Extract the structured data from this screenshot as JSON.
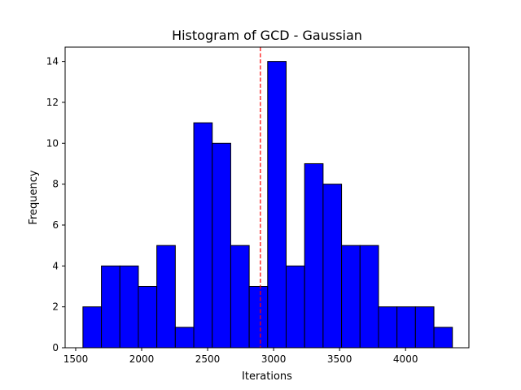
{
  "chart_data": {
    "type": "bar",
    "subtype": "histogram",
    "title": "Histogram of GCD - Gaussian",
    "xlabel": "Iterations",
    "ylabel": "Frequency",
    "xlim": [
      1420,
      4480
    ],
    "ylim": [
      0,
      14.7
    ],
    "xticks": [
      1500,
      2000,
      2500,
      3000,
      3500,
      4000
    ],
    "yticks": [
      0,
      2,
      4,
      6,
      8,
      10,
      12,
      14
    ],
    "bins": [
      {
        "start": 1555,
        "end": 1695,
        "count": 2
      },
      {
        "start": 1695,
        "end": 1835,
        "count": 4
      },
      {
        "start": 1835,
        "end": 1975,
        "count": 4
      },
      {
        "start": 1975,
        "end": 2115,
        "count": 3
      },
      {
        "start": 2115,
        "end": 2255,
        "count": 5
      },
      {
        "start": 2255,
        "end": 2395,
        "count": 1
      },
      {
        "start": 2395,
        "end": 2535,
        "count": 11
      },
      {
        "start": 2535,
        "end": 2675,
        "count": 10
      },
      {
        "start": 2675,
        "end": 2815,
        "count": 5
      },
      {
        "start": 2815,
        "end": 2955,
        "count": 3
      },
      {
        "start": 2955,
        "end": 3095,
        "count": 14
      },
      {
        "start": 3095,
        "end": 3235,
        "count": 4
      },
      {
        "start": 3235,
        "end": 3375,
        "count": 9
      },
      {
        "start": 3375,
        "end": 3515,
        "count": 8
      },
      {
        "start": 3515,
        "end": 3655,
        "count": 5
      },
      {
        "start": 3655,
        "end": 3795,
        "count": 5
      },
      {
        "start": 3795,
        "end": 3935,
        "count": 2
      },
      {
        "start": 3935,
        "end": 4075,
        "count": 2
      },
      {
        "start": 4075,
        "end": 4215,
        "count": 2
      },
      {
        "start": 4215,
        "end": 4355,
        "count": 1
      }
    ],
    "reference_line": {
      "x": 2900,
      "style": "dashed",
      "color": "#ff0000"
    },
    "bar_color": "#0000ff",
    "edge_color": "#000000",
    "grid": false,
    "legend": "none"
  }
}
